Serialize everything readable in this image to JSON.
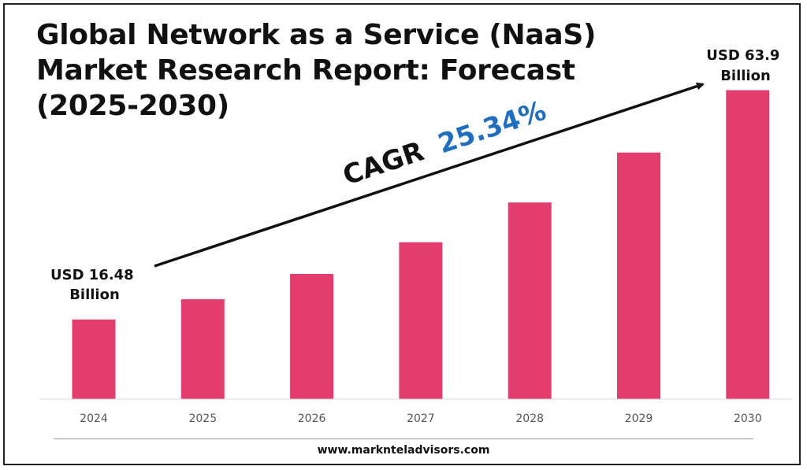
{
  "title": "Global Network as a Service (NaaS) Market Research Report: Forecast (2025-2030)",
  "footer_url": "www.marknteladvisors.com",
  "colors": {
    "bar": "#e23d6d",
    "cagr_value": "#1f6fc0",
    "text": "#111111"
  },
  "chart_data": {
    "type": "bar",
    "title": "Global Network as a Service (NaaS) Market Research Report: Forecast (2025-2030)",
    "categories": [
      "2024",
      "2025",
      "2026",
      "2027",
      "2028",
      "2029",
      "2030"
    ],
    "values": [
      16.48,
      20.66,
      25.89,
      32.45,
      40.67,
      50.98,
      63.9
    ],
    "ylim": [
      0,
      70
    ],
    "grid": false,
    "unit": "USD Billion",
    "annotations": {
      "start_label_line1": "USD 16.48",
      "start_label_line2": "Billion",
      "end_label_line1": "USD 63.9",
      "end_label_line2": "Billion",
      "cagr_prefix": "CAGR",
      "cagr_value": "25.34%"
    }
  }
}
